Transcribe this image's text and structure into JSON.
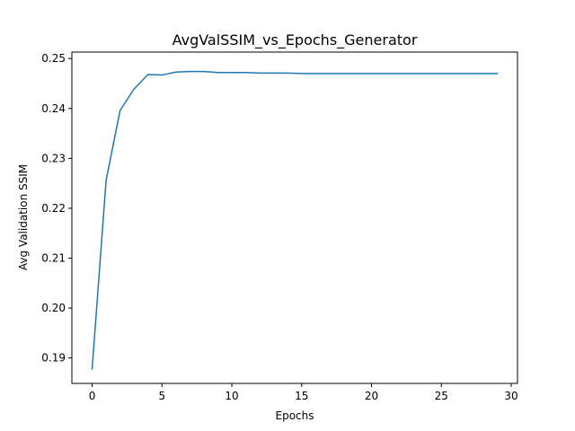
{
  "chart_data": {
    "type": "line",
    "title": "AvgValSSIM_vs_Epochs_Generator",
    "xlabel": "Epochs",
    "ylabel": "Avg Validation SSIM",
    "xlim": [
      -1.45,
      30.45
    ],
    "ylim": [
      0.1849,
      0.2513
    ],
    "xticks": [
      0,
      5,
      10,
      15,
      20,
      25,
      30
    ],
    "yticks": [
      0.19,
      0.2,
      0.21,
      0.22,
      0.23,
      0.24,
      0.25
    ],
    "ytick_labels": [
      "0.19",
      "0.20",
      "0.21",
      "0.22",
      "0.23",
      "0.24",
      "0.25"
    ],
    "grid": false,
    "series": [
      {
        "color": "#1f77b4",
        "x": [
          0,
          1,
          2,
          3,
          4,
          5,
          6,
          7,
          8,
          9,
          10,
          11,
          12,
          13,
          14,
          15,
          16,
          17,
          18,
          19,
          20,
          21,
          22,
          23,
          24,
          25,
          26,
          27,
          28,
          29
        ],
        "y": [
          0.1878,
          0.2256,
          0.2396,
          0.2439,
          0.2468,
          0.2467,
          0.2473,
          0.2474,
          0.2474,
          0.2472,
          0.2472,
          0.2472,
          0.2471,
          0.2471,
          0.2471,
          0.247,
          0.247,
          0.247,
          0.247,
          0.247,
          0.247,
          0.247,
          0.247,
          0.247,
          0.247,
          0.247,
          0.247,
          0.247,
          0.247,
          0.247
        ]
      }
    ]
  }
}
